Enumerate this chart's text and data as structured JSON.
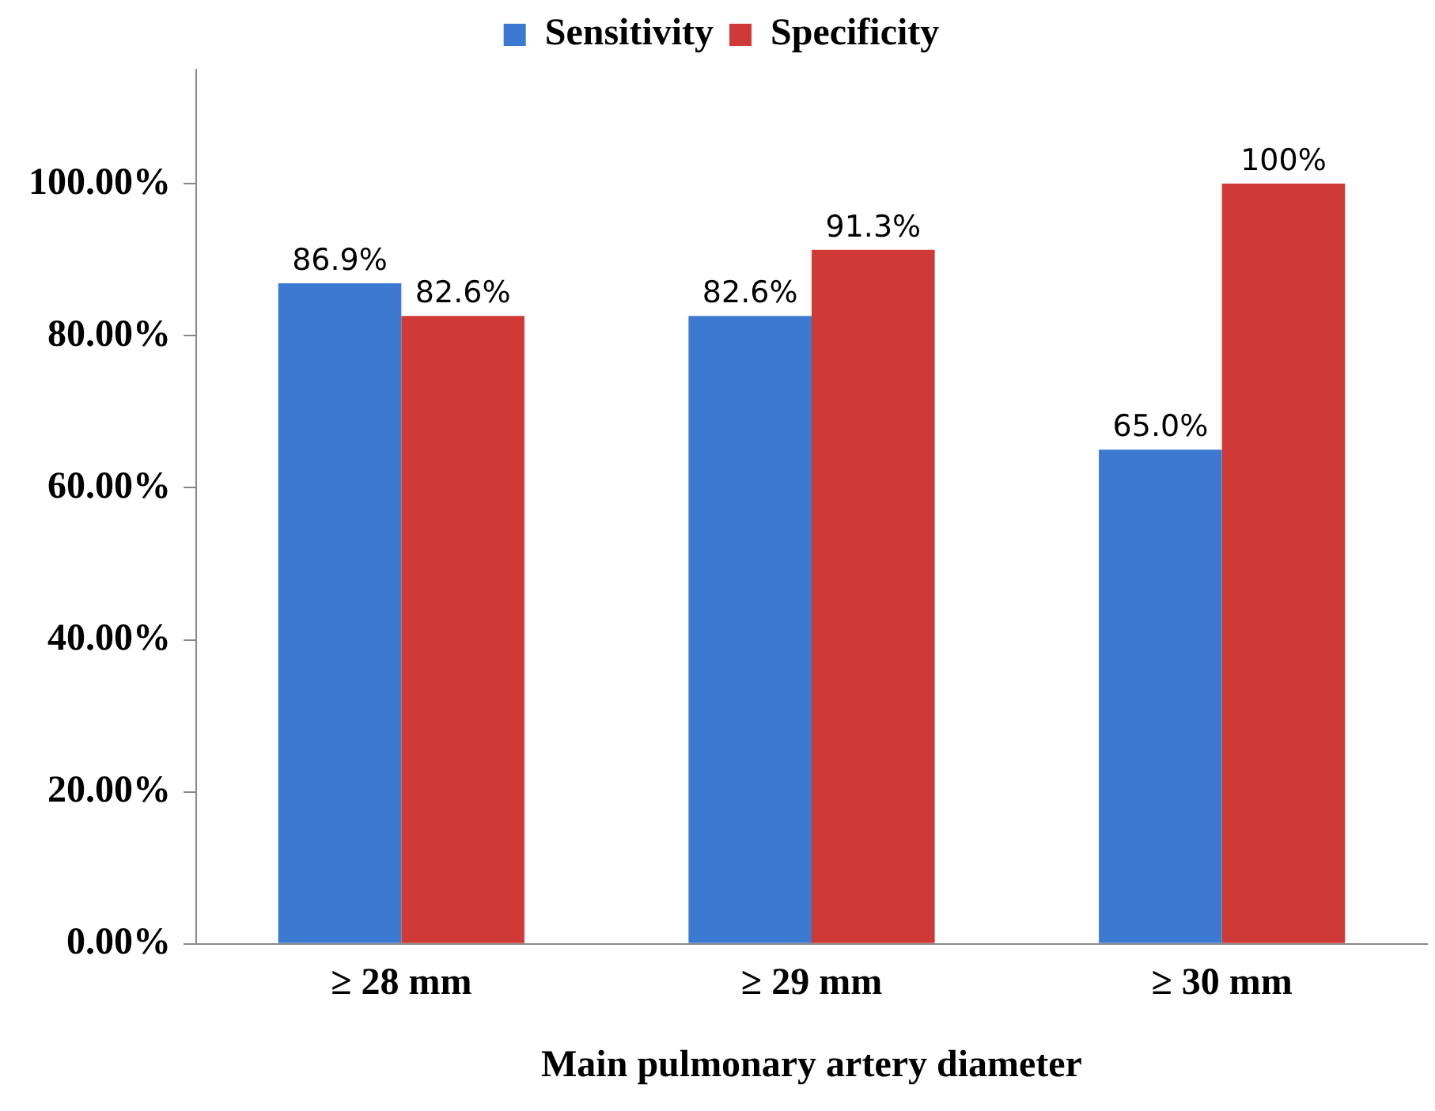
{
  "chart_data": {
    "type": "bar",
    "xlabel": "Main pulmonary artery diameter",
    "categories": [
      "≥ 28 mm",
      "≥ 29 mm",
      "≥ 30 mm"
    ],
    "series": [
      {
        "name": "Sensitivity",
        "color": "#3c7ad2",
        "values": [
          86.9,
          82.6,
          65.0
        ],
        "value_labels": [
          "86.9%",
          "82.6%",
          "65.0%"
        ]
      },
      {
        "name": "Specificity",
        "color": "#d03a36",
        "values": [
          82.6,
          91.3,
          100
        ],
        "value_labels": [
          "82.6%",
          "91.3%",
          "100%"
        ]
      }
    ],
    "ylim": [
      0,
      115
    ],
    "yticks": [
      {
        "value": 0,
        "label": "0.00%"
      },
      {
        "value": 20,
        "label": "20.00%"
      },
      {
        "value": 40,
        "label": "40.00%"
      },
      {
        "value": 60,
        "label": "60.00%"
      },
      {
        "value": 80,
        "label": "80.00%"
      },
      {
        "value": 100,
        "label": "100.00%"
      }
    ],
    "grid": false,
    "legend": "top"
  }
}
